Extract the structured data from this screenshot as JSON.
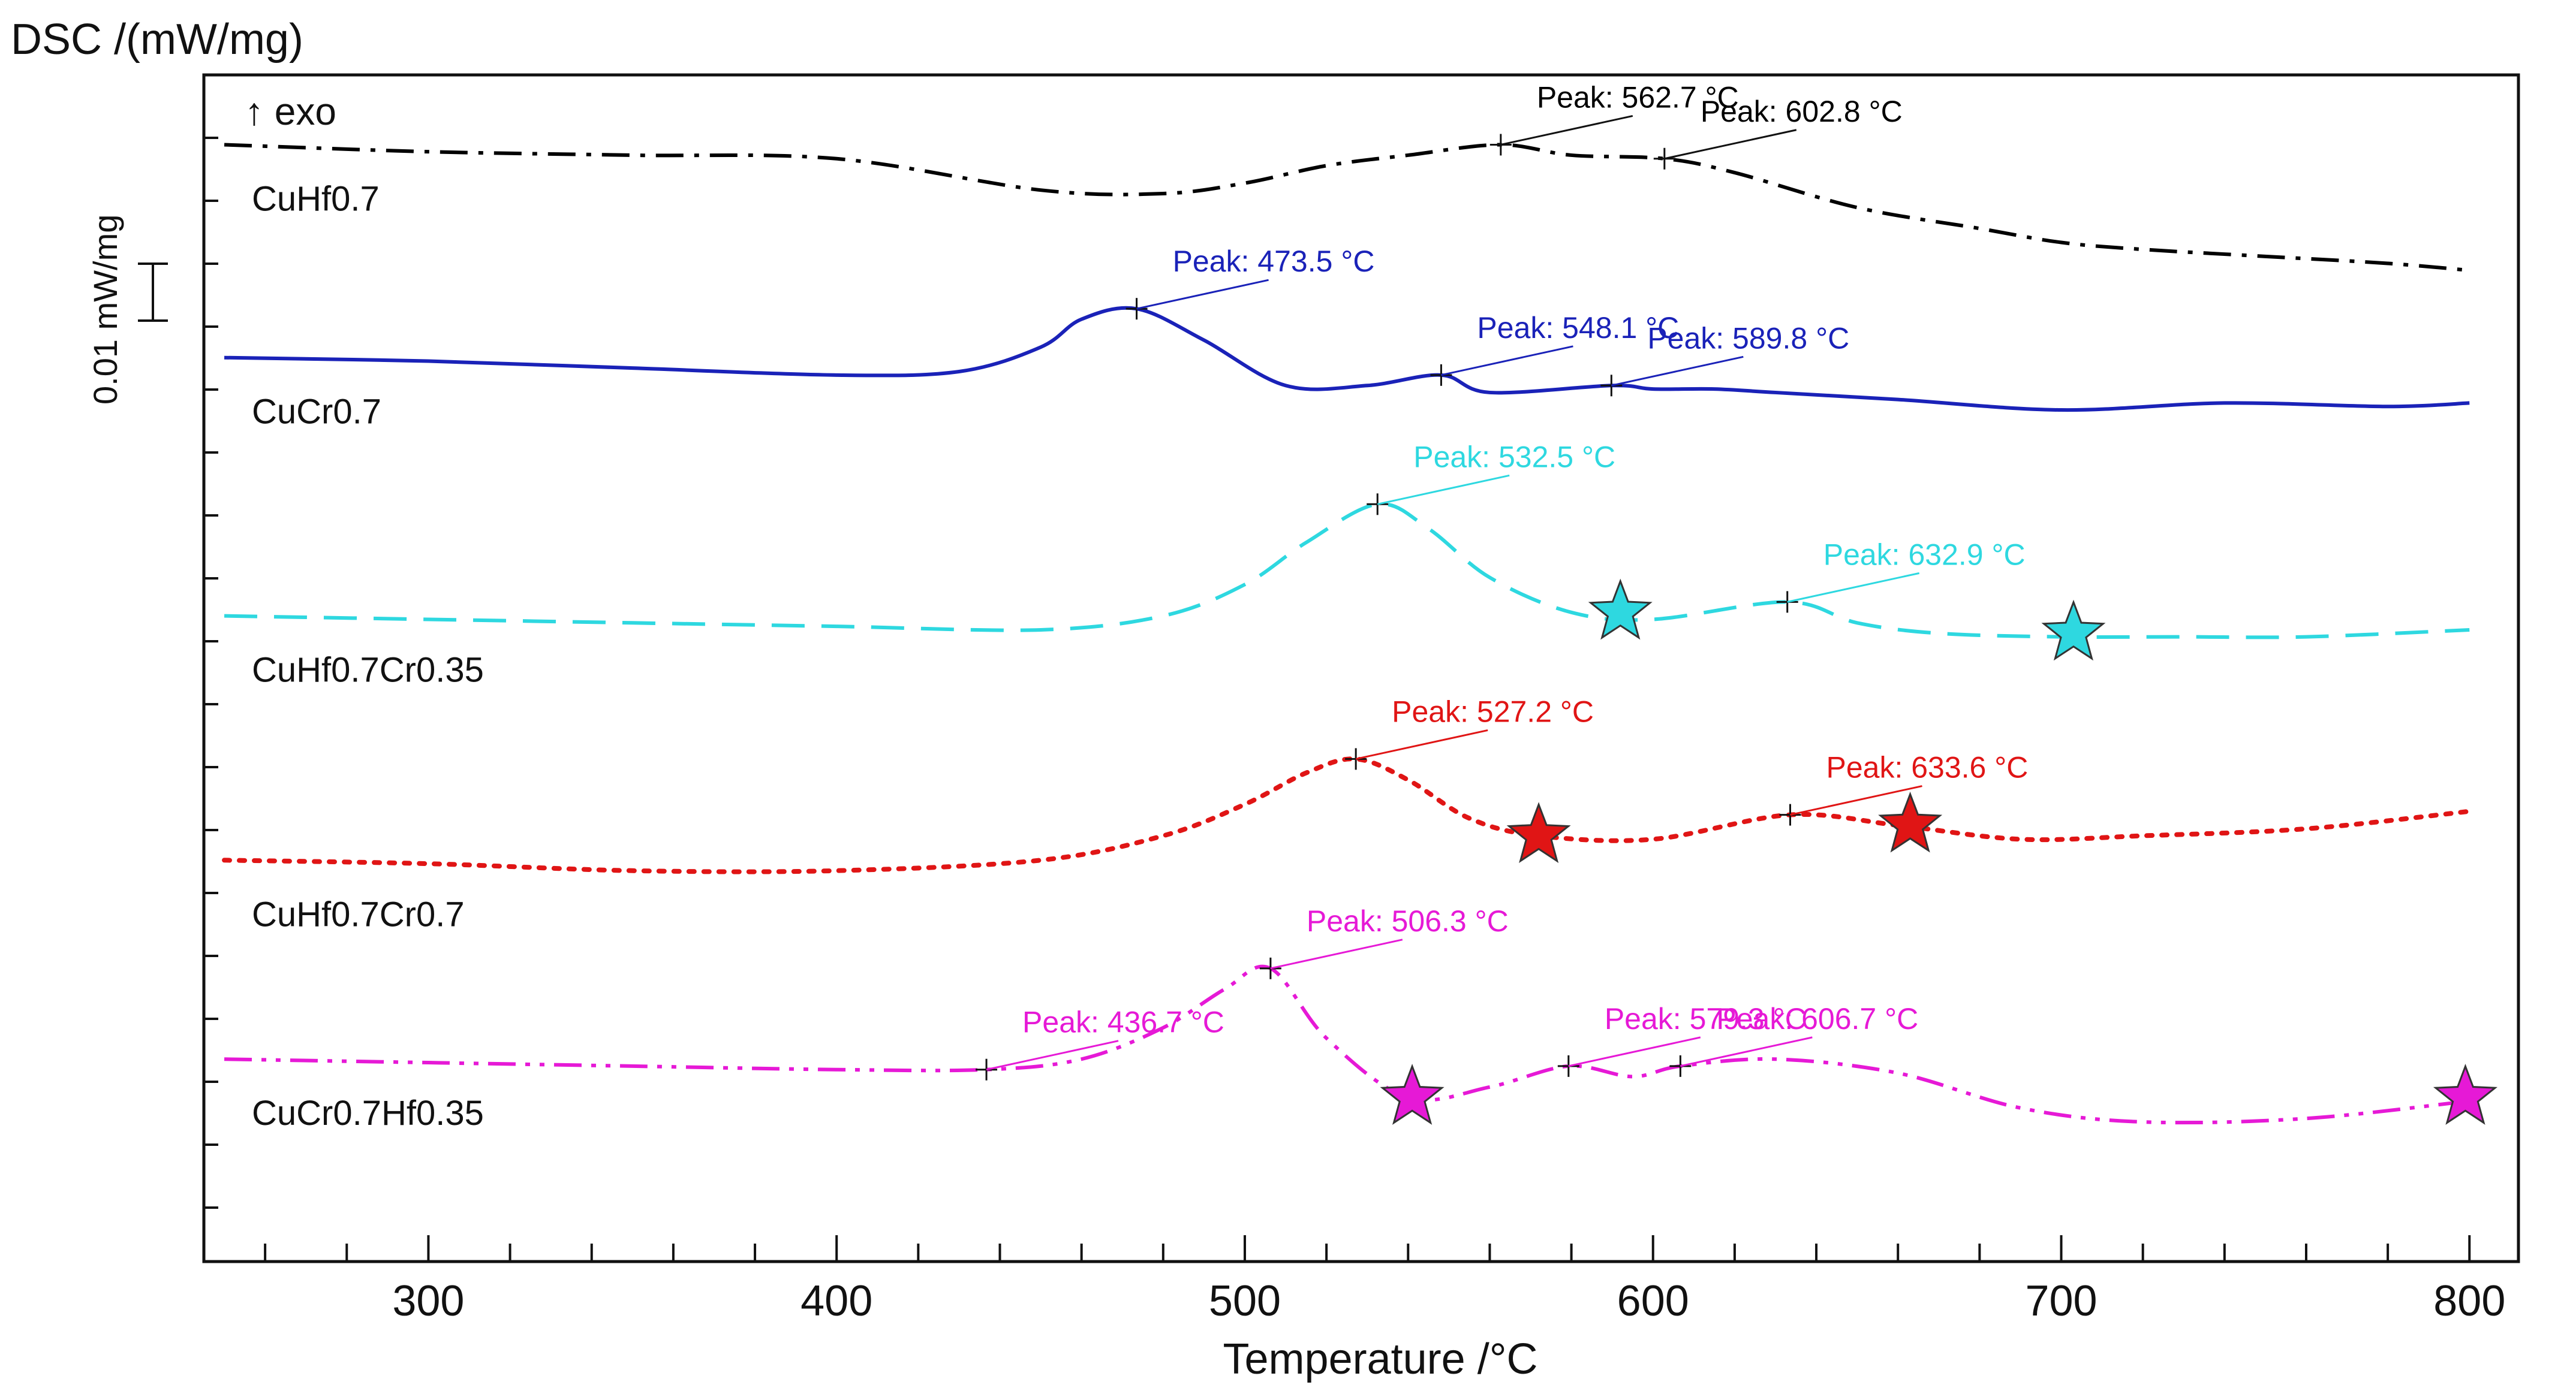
{
  "chart_data": {
    "type": "line",
    "title": "",
    "ylabel": "DSC /(mW/mg)",
    "xlabel": "Temperature /°C",
    "xlim": [
      245,
      812
    ],
    "ylim": [
      -2.0,
      15.0
    ],
    "x_ticks": [
      300,
      400,
      500,
      600,
      700,
      800
    ],
    "exo_label": "↑ exo",
    "scale_bar_label": "0.01 mW/mg",
    "grid": false,
    "series": [
      {
        "name": "CuHf0.7",
        "color": "#000000",
        "style": "dashdot",
        "x": [
          250,
          300,
          350,
          400,
          450,
          480,
          500,
          520,
          540,
          562.7,
          580,
          602.8,
          620,
          650,
          680,
          700,
          720,
          750,
          780,
          800
        ],
        "y": [
          14.0,
          13.9,
          13.85,
          13.8,
          13.35,
          13.3,
          13.45,
          13.7,
          13.85,
          14.0,
          13.85,
          13.8,
          13.6,
          13.1,
          12.8,
          12.6,
          12.5,
          12.4,
          12.3,
          12.2
        ],
        "peaks": [
          {
            "x": 562.7,
            "y": 14.0,
            "label": "Peak: 562.7 °C"
          },
          {
            "x": 602.8,
            "y": 13.8,
            "label": "Peak: 602.8 °C"
          }
        ]
      },
      {
        "name": "CuCr0.7",
        "color": "#1a22b8",
        "style": "solid",
        "x": [
          250,
          300,
          350,
          400,
          430,
          450,
          460,
          473.5,
          490,
          510,
          530,
          548.1,
          560,
          589.8,
          600,
          615,
          630,
          660,
          700,
          740,
          780,
          800
        ],
        "y": [
          10.95,
          10.9,
          10.8,
          10.7,
          10.75,
          11.1,
          11.5,
          11.65,
          11.2,
          10.55,
          10.55,
          10.7,
          10.45,
          10.55,
          10.5,
          10.5,
          10.45,
          10.35,
          10.2,
          10.3,
          10.25,
          10.3
        ],
        "peaks": [
          {
            "x": 473.5,
            "y": 11.65,
            "label": "Peak: 473.5 °C"
          },
          {
            "x": 548.1,
            "y": 10.7,
            "label": "Peak: 548.1 °C"
          },
          {
            "x": 589.8,
            "y": 10.55,
            "label": "Peak: 589.8 °C"
          }
        ]
      },
      {
        "name": "CuHf0.7Cr0.35",
        "color": "#2ed8e0",
        "style": "dashed",
        "x": [
          250,
          300,
          350,
          400,
          450,
          480,
          500,
          515,
          532.5,
          545,
          560,
          580,
          600,
          632.9,
          650,
          670,
          700,
          730,
          760,
          800
        ],
        "y": [
          7.25,
          7.2,
          7.15,
          7.1,
          7.05,
          7.25,
          7.7,
          8.3,
          8.85,
          8.5,
          7.8,
          7.3,
          7.2,
          7.45,
          7.15,
          7.0,
          6.95,
          6.95,
          6.95,
          7.05
        ],
        "peaks": [
          {
            "x": 532.5,
            "y": 8.85,
            "label": "Peak: 532.5 °C"
          },
          {
            "x": 632.9,
            "y": 7.45,
            "label": "Peak: 632.9 °C"
          }
        ],
        "stars": [
          {
            "x": 592,
            "y": 7.3
          },
          {
            "x": 703,
            "y": 7.0
          }
        ]
      },
      {
        "name": "CuHf0.7Cr0.7",
        "color": "#e01515",
        "style": "dotted",
        "x": [
          250,
          300,
          350,
          400,
          450,
          480,
          500,
          515,
          527.2,
          540,
          555,
          572,
          600,
          633.6,
          660,
          690,
          720,
          760,
          800
        ],
        "y": [
          3.75,
          3.7,
          3.6,
          3.6,
          3.75,
          4.1,
          4.55,
          5.0,
          5.2,
          4.9,
          4.35,
          4.1,
          4.05,
          4.4,
          4.25,
          4.05,
          4.1,
          4.2,
          4.45
        ],
        "peaks": [
          {
            "x": 527.2,
            "y": 5.2,
            "label": "Peak: 527.2 °C"
          },
          {
            "x": 633.6,
            "y": 4.4,
            "label": "Peak: 633.6 °C"
          }
        ],
        "stars": [
          {
            "x": 572,
            "y": 4.1
          },
          {
            "x": 663,
            "y": 4.25
          }
        ]
      },
      {
        "name": "CuCr0.7Hf0.35",
        "color": "#e619d6",
        "style": "dashdotdot",
        "x": [
          250,
          300,
          350,
          400,
          436.7,
          460,
          480,
          495,
          506.3,
          520,
          540,
          560,
          579.3,
          595,
          606.7,
          630,
          660,
          690,
          720,
          760,
          800
        ],
        "y": [
          0.9,
          0.85,
          0.8,
          0.75,
          0.75,
          0.9,
          1.35,
          1.9,
          2.2,
          1.2,
          0.35,
          0.5,
          0.8,
          0.65,
          0.8,
          0.9,
          0.7,
          0.2,
          0.0,
          0.05,
          0.3
        ],
        "peaks": [
          {
            "x": 436.7,
            "y": 0.75,
            "label": "Peak: 436.7 °C"
          },
          {
            "x": 506.3,
            "y": 2.2,
            "label": "Peak: 506.3 °C"
          },
          {
            "x": 579.3,
            "y": 0.8,
            "label": "Peak: 579.3 °C"
          },
          {
            "x": 606.7,
            "y": 0.8,
            "label": "Peak: 606.7 °C"
          }
        ],
        "stars": [
          {
            "x": 541,
            "y": 0.35
          },
          {
            "x": 799,
            "y": 0.35
          }
        ]
      }
    ]
  }
}
